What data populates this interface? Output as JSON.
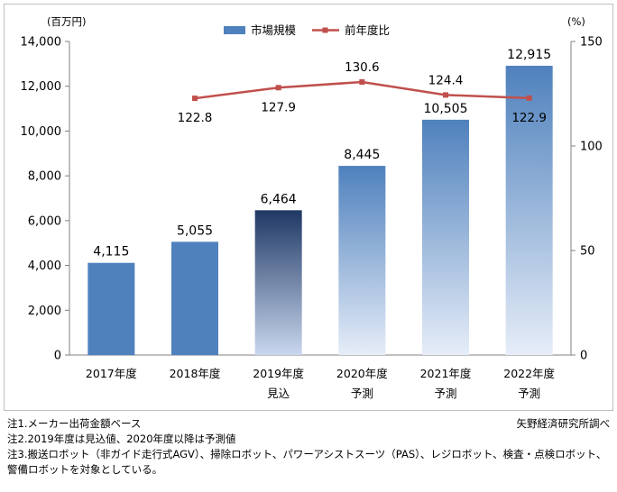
{
  "chart_data": {
    "type": "bar",
    "title": "",
    "categories": [
      {
        "line1": "2017年度",
        "line2": ""
      },
      {
        "line1": "2018年度",
        "line2": ""
      },
      {
        "line1": "2019年度",
        "line2": "見込"
      },
      {
        "line1": "2020年度",
        "line2": "予測"
      },
      {
        "line1": "2021年度",
        "line2": "予測"
      },
      {
        "line1": "2022年度",
        "line2": "予測"
      }
    ],
    "series": [
      {
        "name": "市場規模",
        "type": "bar",
        "axis": "left",
        "values": [
          4115,
          5055,
          6464,
          8445,
          10505,
          12915
        ],
        "labels": [
          "4,115",
          "5,055",
          "6,464",
          "8,445",
          "10,505",
          "12,915"
        ]
      },
      {
        "name": "前年度比",
        "type": "line",
        "axis": "right",
        "values": [
          null,
          122.8,
          127.9,
          130.6,
          124.4,
          122.9
        ],
        "labels": [
          "",
          "122.8",
          "127.9",
          "130.6",
          "124.4",
          "122.9"
        ]
      }
    ],
    "ylabel_left": "(百万円)",
    "ylabel_right": "(%)",
    "ylim_left": [
      0,
      14000
    ],
    "ylim_right": [
      0,
      150
    ],
    "yticks_left": [
      "0",
      "2,000",
      "4,000",
      "6,000",
      "8,000",
      "10,000",
      "12,000",
      "14,000"
    ],
    "yticks_right": [
      "0",
      "50",
      "100",
      "150"
    ],
    "legend": "top-center",
    "colors": {
      "bar": "#4f81bd",
      "bar_dark": "#1f3864",
      "bar_light": "#dce6f4",
      "line": "#c0504d",
      "axis": "#808080"
    }
  },
  "footnotes": [
    "注1.メーカー出荷金額ベース",
    "注2.2019年度は見込値、2020年度以降は予測値",
    "注3.搬送ロボット（非ガイド走行式AGV）、掃除ロボット、パワーアシストスーツ（PAS）、レジロボット、検査・点検ロボット、",
    "警備ロボットを対象としている。"
  ],
  "source": "矢野経済研究所調べ"
}
